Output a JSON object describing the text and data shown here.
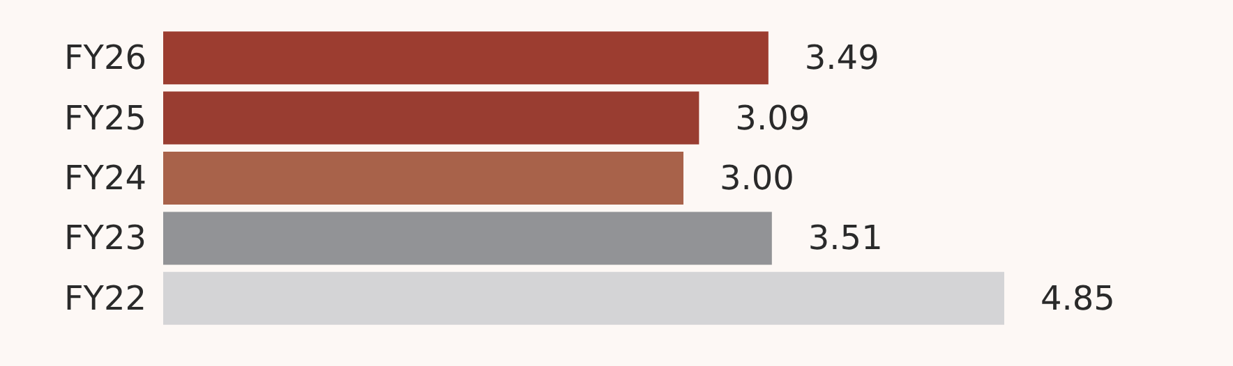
{
  "chart_data": {
    "type": "bar",
    "orientation": "horizontal",
    "categories": [
      "FY26",
      "FY25",
      "FY24",
      "FY23",
      "FY22"
    ],
    "values": [
      3.49,
      3.09,
      3.0,
      3.51,
      4.85
    ],
    "value_labels": [
      "3.49",
      "3.09",
      "3.00",
      "3.51",
      "4.85"
    ],
    "colors": [
      "#9c3d30",
      "#993d31",
      "#a8624a",
      "#929396",
      "#d4d4d6"
    ],
    "tick_labels": "y"
  }
}
